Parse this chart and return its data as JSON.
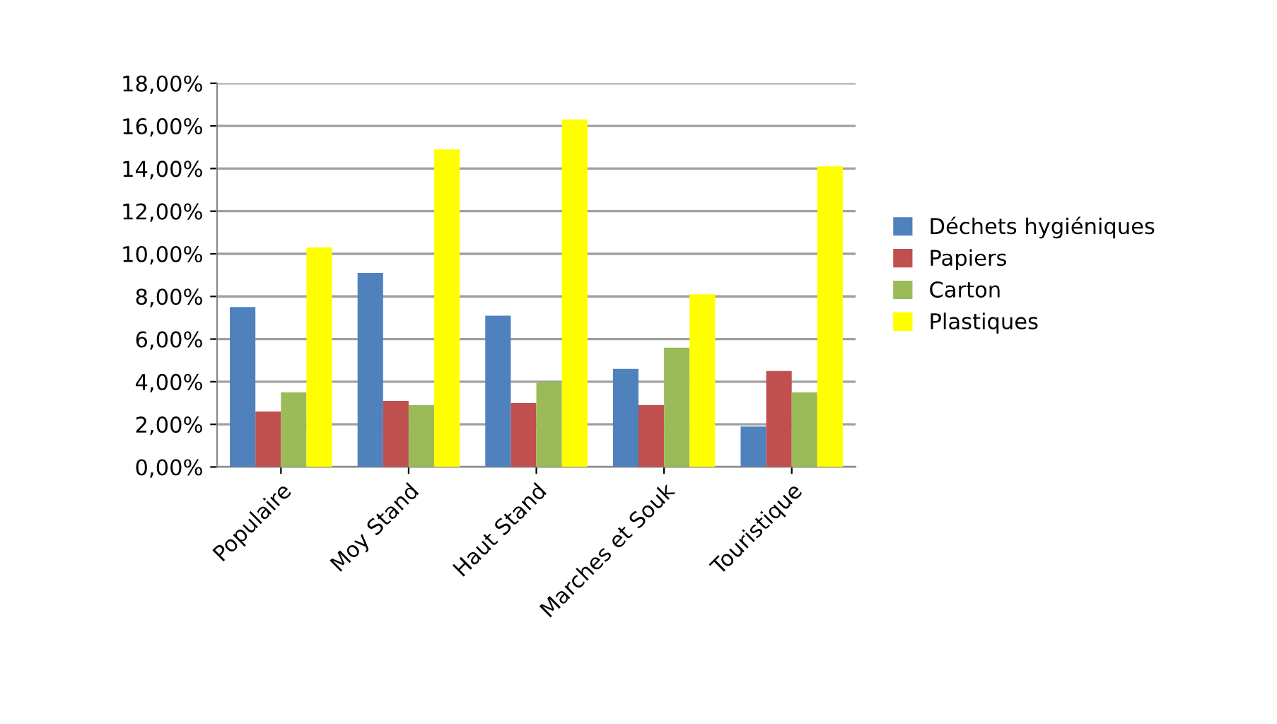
{
  "chart_data": {
    "type": "bar",
    "categories": [
      "Populaire",
      "Moy Stand",
      "Haut Stand",
      "Marches et Souk",
      "Touristique"
    ],
    "series": [
      {
        "name": "Déchets hygiéniques",
        "color": "#4f81bd",
        "values": [
          7.5,
          9.1,
          7.1,
          4.6,
          1.9
        ]
      },
      {
        "name": "Papiers",
        "color": "#c0504d",
        "values": [
          2.6,
          3.1,
          3.0,
          2.9,
          4.5
        ]
      },
      {
        "name": "Carton",
        "color": "#9bbb59",
        "values": [
          3.5,
          2.9,
          4.0,
          5.6,
          3.5
        ]
      },
      {
        "name": "Plastiques",
        "color": "#ffff00",
        "values": [
          10.3,
          14.9,
          16.3,
          8.1,
          14.1
        ]
      }
    ],
    "ylim": [
      0,
      18
    ],
    "yticks": [
      {
        "value": 0,
        "label": "0,00%"
      },
      {
        "value": 2,
        "label": "2,00%"
      },
      {
        "value": 4,
        "label": "4,00%"
      },
      {
        "value": 6,
        "label": "6,00%"
      },
      {
        "value": 8,
        "label": "8,00%"
      },
      {
        "value": 10,
        "label": "10,00%"
      },
      {
        "value": 12,
        "label": "12,00%"
      },
      {
        "value": 14,
        "label": "14,00%"
      },
      {
        "value": 16,
        "label": "16,00%"
      },
      {
        "value": 18,
        "label": "18,00%"
      }
    ],
    "grid": "y",
    "legend": "right"
  }
}
